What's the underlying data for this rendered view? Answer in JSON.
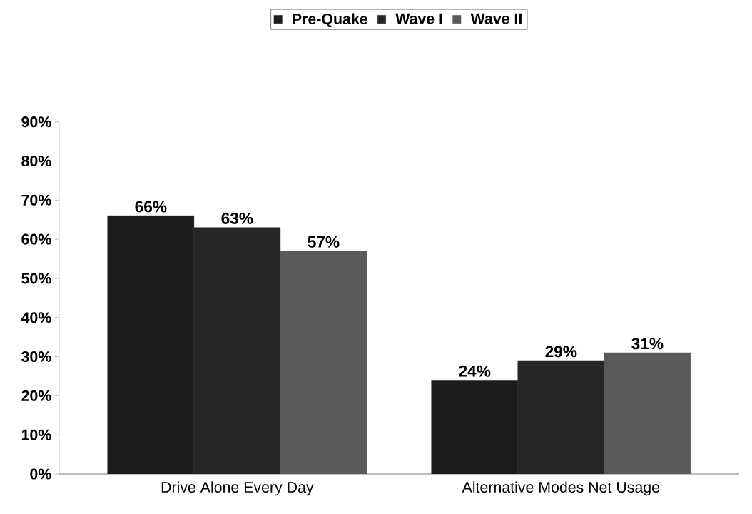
{
  "chart_data": {
    "type": "bar",
    "categories": [
      "Drive Alone Every Day",
      "Alternative Modes Net Usage"
    ],
    "series": [
      {
        "name": "Pre-Quake",
        "color": "#1c1c1c",
        "values": [
          66,
          24
        ],
        "value_labels": [
          "66%",
          "24%"
        ]
      },
      {
        "name": "Wave I",
        "color": "#262626",
        "values": [
          63,
          29
        ],
        "value_labels": [
          "63%",
          "29%"
        ]
      },
      {
        "name": "Wave II",
        "color": "#5a5a5a",
        "values": [
          57,
          31
        ],
        "value_labels": [
          "57%",
          "31%"
        ]
      }
    ],
    "ylim": [
      0,
      90
    ],
    "yticks": [
      {
        "value": 0,
        "label": "0%"
      },
      {
        "value": 10,
        "label": "10%"
      },
      {
        "value": 20,
        "label": "20%"
      },
      {
        "value": 30,
        "label": "30%"
      },
      {
        "value": 40,
        "label": "40%"
      },
      {
        "value": 50,
        "label": "50%"
      },
      {
        "value": 60,
        "label": "60%"
      },
      {
        "value": 70,
        "label": "70%"
      },
      {
        "value": 80,
        "label": "80%"
      },
      {
        "value": 90,
        "label": "90%"
      }
    ],
    "grid": false,
    "legend": "top"
  }
}
